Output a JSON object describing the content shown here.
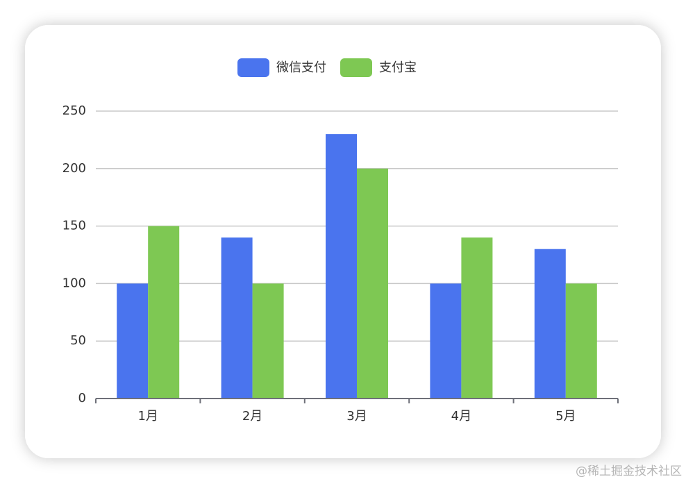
{
  "chart_data": {
    "type": "bar",
    "categories": [
      "1月",
      "2月",
      "3月",
      "4月",
      "5月"
    ],
    "series": [
      {
        "name": "微信支付",
        "color": "#4a74ee",
        "values": [
          100,
          140,
          230,
          100,
          130
        ]
      },
      {
        "name": "支付宝",
        "color": "#7ec853",
        "values": [
          150,
          100,
          200,
          140,
          100
        ]
      }
    ],
    "ylim": [
      0,
      250
    ],
    "yticks": [
      0,
      50,
      100,
      150,
      200,
      250
    ],
    "grid": true,
    "legend": "top"
  },
  "watermark": "@稀土掘金技术社区"
}
